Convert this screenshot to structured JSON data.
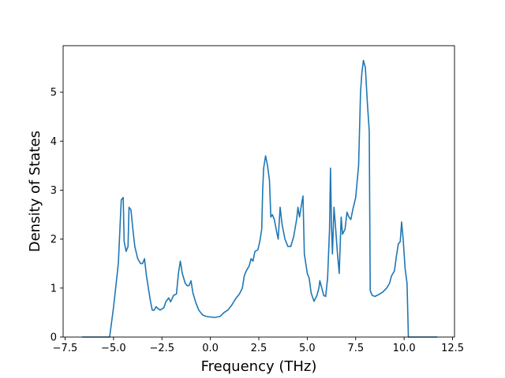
{
  "chart_data": {
    "type": "line",
    "title": "",
    "xlabel": "Frequency (THz)",
    "ylabel": "Density of States",
    "xlim": [
      -7.6,
      12.6
    ],
    "ylim": [
      0,
      5.95
    ],
    "grid": false,
    "legend": "none",
    "x_ticks": [
      {
        "value": -7.5,
        "label": "−7.5"
      },
      {
        "value": -5.0,
        "label": "−5.0"
      },
      {
        "value": -2.5,
        "label": "−2.5"
      },
      {
        "value": 0.0,
        "label": "0.0"
      },
      {
        "value": 2.5,
        "label": "2.5"
      },
      {
        "value": 5.0,
        "label": "5.0"
      },
      {
        "value": 7.5,
        "label": "7.5"
      },
      {
        "value": 10.0,
        "label": "10.0"
      },
      {
        "value": 12.5,
        "label": "12.5"
      }
    ],
    "y_ticks": [
      {
        "value": 0,
        "label": "0"
      },
      {
        "value": 1,
        "label": "1"
      },
      {
        "value": 2,
        "label": "2"
      },
      {
        "value": 3,
        "label": "3"
      },
      {
        "value": 4,
        "label": "4"
      },
      {
        "value": 5,
        "label": "5"
      }
    ],
    "series": [
      {
        "color": "#1f77b4",
        "points": [
          [
            -6.6,
            0.0
          ],
          [
            -5.2,
            0.0
          ],
          [
            -5.0,
            0.6
          ],
          [
            -4.75,
            1.5
          ],
          [
            -4.6,
            2.8
          ],
          [
            -4.5,
            2.85
          ],
          [
            -4.45,
            1.95
          ],
          [
            -4.35,
            1.75
          ],
          [
            -4.25,
            1.85
          ],
          [
            -4.2,
            2.65
          ],
          [
            -4.1,
            2.6
          ],
          [
            -4.0,
            2.2
          ],
          [
            -3.9,
            1.85
          ],
          [
            -3.75,
            1.6
          ],
          [
            -3.6,
            1.5
          ],
          [
            -3.5,
            1.5
          ],
          [
            -3.4,
            1.6
          ],
          [
            -3.3,
            1.25
          ],
          [
            -3.1,
            0.75
          ],
          [
            -3.0,
            0.55
          ],
          [
            -2.9,
            0.55
          ],
          [
            -2.8,
            0.62
          ],
          [
            -2.7,
            0.58
          ],
          [
            -2.6,
            0.55
          ],
          [
            -2.4,
            0.6
          ],
          [
            -2.3,
            0.72
          ],
          [
            -2.15,
            0.8
          ],
          [
            -2.05,
            0.72
          ],
          [
            -1.9,
            0.85
          ],
          [
            -1.75,
            0.88
          ],
          [
            -1.65,
            1.3
          ],
          [
            -1.55,
            1.55
          ],
          [
            -1.45,
            1.3
          ],
          [
            -1.3,
            1.1
          ],
          [
            -1.2,
            1.05
          ],
          [
            -1.1,
            1.05
          ],
          [
            -1.0,
            1.15
          ],
          [
            -0.9,
            0.9
          ],
          [
            -0.75,
            0.7
          ],
          [
            -0.6,
            0.55
          ],
          [
            -0.4,
            0.45
          ],
          [
            -0.2,
            0.42
          ],
          [
            0.2,
            0.4
          ],
          [
            0.5,
            0.42
          ],
          [
            0.7,
            0.5
          ],
          [
            0.9,
            0.55
          ],
          [
            1.1,
            0.65
          ],
          [
            1.3,
            0.78
          ],
          [
            1.5,
            0.88
          ],
          [
            1.65,
            1.0
          ],
          [
            1.75,
            1.25
          ],
          [
            1.85,
            1.35
          ],
          [
            2.0,
            1.45
          ],
          [
            2.1,
            1.6
          ],
          [
            2.2,
            1.55
          ],
          [
            2.3,
            1.75
          ],
          [
            2.45,
            1.78
          ],
          [
            2.55,
            1.95
          ],
          [
            2.65,
            2.2
          ],
          [
            2.7,
            3.0
          ],
          [
            2.75,
            3.45
          ],
          [
            2.85,
            3.7
          ],
          [
            2.95,
            3.5
          ],
          [
            3.05,
            3.2
          ],
          [
            3.12,
            2.45
          ],
          [
            3.2,
            2.5
          ],
          [
            3.3,
            2.4
          ],
          [
            3.42,
            2.15
          ],
          [
            3.5,
            2.0
          ],
          [
            3.6,
            2.65
          ],
          [
            3.7,
            2.3
          ],
          [
            3.85,
            2.0
          ],
          [
            4.0,
            1.85
          ],
          [
            4.15,
            1.85
          ],
          [
            4.3,
            2.05
          ],
          [
            4.45,
            2.4
          ],
          [
            4.52,
            2.65
          ],
          [
            4.6,
            2.45
          ],
          [
            4.7,
            2.7
          ],
          [
            4.78,
            2.88
          ],
          [
            4.85,
            1.7
          ],
          [
            5.0,
            1.3
          ],
          [
            5.1,
            1.2
          ],
          [
            5.2,
            0.9
          ],
          [
            5.35,
            0.73
          ],
          [
            5.5,
            0.85
          ],
          [
            5.6,
            1.0
          ],
          [
            5.65,
            1.15
          ],
          [
            5.75,
            1.0
          ],
          [
            5.85,
            0.85
          ],
          [
            5.95,
            0.83
          ],
          [
            6.05,
            1.2
          ],
          [
            6.15,
            2.2
          ],
          [
            6.2,
            3.45
          ],
          [
            6.25,
            2.3
          ],
          [
            6.3,
            1.7
          ],
          [
            6.38,
            2.65
          ],
          [
            6.45,
            2.3
          ],
          [
            6.55,
            1.75
          ],
          [
            6.65,
            1.3
          ],
          [
            6.75,
            2.45
          ],
          [
            6.82,
            2.1
          ],
          [
            6.95,
            2.2
          ],
          [
            7.05,
            2.55
          ],
          [
            7.15,
            2.45
          ],
          [
            7.25,
            2.4
          ],
          [
            7.35,
            2.6
          ],
          [
            7.5,
            2.85
          ],
          [
            7.65,
            3.5
          ],
          [
            7.75,
            5.0
          ],
          [
            7.82,
            5.4
          ],
          [
            7.9,
            5.65
          ],
          [
            8.0,
            5.5
          ],
          [
            8.1,
            4.8
          ],
          [
            8.2,
            4.2
          ],
          [
            8.25,
            0.95
          ],
          [
            8.35,
            0.85
          ],
          [
            8.5,
            0.83
          ],
          [
            8.7,
            0.87
          ],
          [
            8.9,
            0.92
          ],
          [
            9.1,
            1.0
          ],
          [
            9.25,
            1.1
          ],
          [
            9.35,
            1.25
          ],
          [
            9.5,
            1.35
          ],
          [
            9.6,
            1.65
          ],
          [
            9.7,
            1.9
          ],
          [
            9.8,
            1.95
          ],
          [
            9.87,
            2.35
          ],
          [
            9.95,
            2.0
          ],
          [
            10.05,
            1.4
          ],
          [
            10.15,
            1.1
          ],
          [
            10.22,
            0.0
          ],
          [
            11.7,
            0.0
          ]
        ]
      }
    ]
  }
}
